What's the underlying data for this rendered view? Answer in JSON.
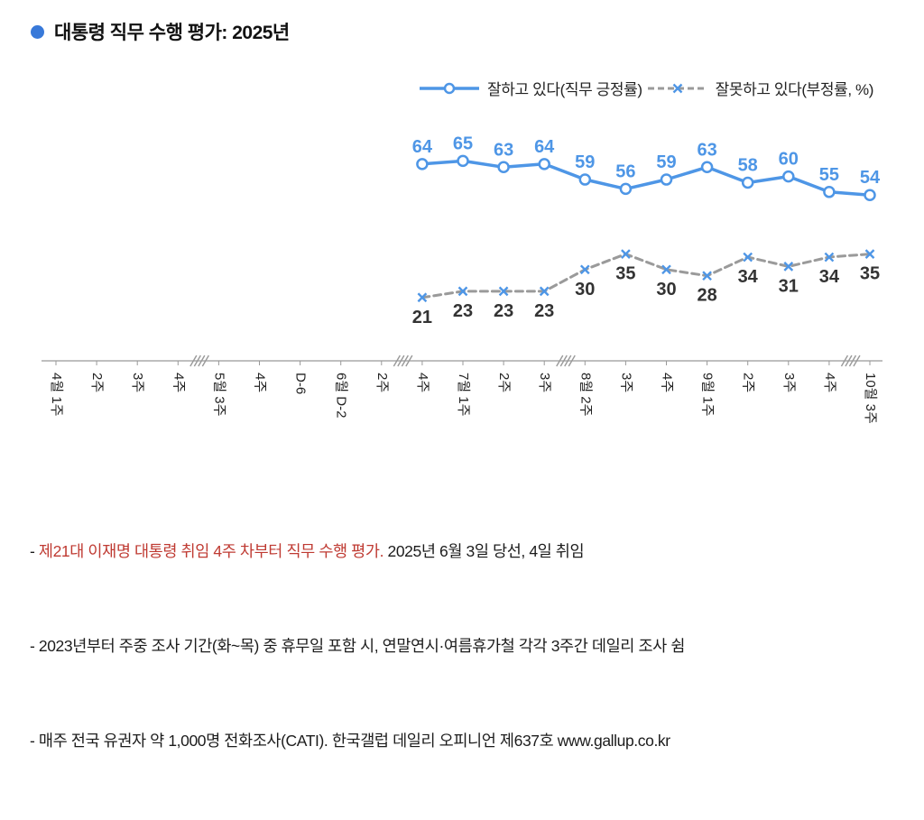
{
  "title": {
    "text": "대통령 직무 수행 평가: 2025년"
  },
  "legend": {
    "items": [
      {
        "label": "잘하고 있다(직무 긍정률)",
        "swatch": "solid-line-circle-marker"
      },
      {
        "label": "잘못하고 있다(부정률, %)",
        "swatch": "dashed-line-x-marker"
      }
    ]
  },
  "colors": {
    "accent": "#3879d9",
    "positive": "#4e96e6",
    "positive_label": "#4e96e6",
    "negative": "#9a9a9a",
    "negative_marker": "#4e96e6",
    "negative_label": "#333333",
    "axis": "#999999",
    "text": "#222222",
    "footnote_highlight": "#bf3a32"
  },
  "chart_data": {
    "type": "line",
    "title": "대통령 직무 수행 평가: 2025년",
    "unit": "%",
    "grid": false,
    "legend_position": "top",
    "ylim": [
      0,
      80
    ],
    "categories": [
      "4월 1주",
      "2주",
      "3주",
      "4주",
      "5월 3주",
      "4주",
      "D-6",
      "6월 D-2",
      "2주",
      "4주",
      "7월 1주",
      "2주",
      "3주",
      "8월 2주",
      "3주",
      "4주",
      "9월 1주",
      "2주",
      "3주",
      "4주",
      "10월 3주"
    ],
    "axis_breaks_after_index": [
      3,
      8,
      12,
      19
    ],
    "series": [
      {
        "name": "잘하고 있다(직무 긍정률)",
        "start_index": 9,
        "values": [
          64,
          65,
          63,
          64,
          59,
          56,
          59,
          63,
          58,
          60,
          55,
          54
        ],
        "color": "#4e96e6",
        "label_color": "#4e96e6",
        "style": "solid",
        "marker": "circle",
        "label_position": "above"
      },
      {
        "name": "잘못하고 있다(부정률, %)",
        "start_index": 9,
        "values": [
          21,
          23,
          23,
          23,
          30,
          35,
          30,
          28,
          34,
          31,
          34,
          35
        ],
        "color": "#9a9a9a",
        "marker_color": "#4e96e6",
        "label_color": "#333333",
        "style": "dashed",
        "marker": "x",
        "label_position": "below"
      }
    ]
  },
  "footnotes": [
    {
      "prefix": "- ",
      "highlight": "제21대 이재명 대통령 취임 4주 차부터 직무 수행 평가.",
      "rest": " 2025년 6월 3일 당선, 4일 취임"
    },
    {
      "prefix": "- ",
      "highlight": "",
      "rest": "2023년부터 주중 조사 기간(화~목) 중 휴무일 포함 시, 연말연시·여름휴가철 각각 3주간 데일리 조사 쉼"
    },
    {
      "prefix": "- ",
      "highlight": "",
      "rest": "매주 전국 유권자 약 1,000명 전화조사(CATI). 한국갤럽 데일리 오피니언 제637호 www.gallup.co.kr"
    }
  ]
}
